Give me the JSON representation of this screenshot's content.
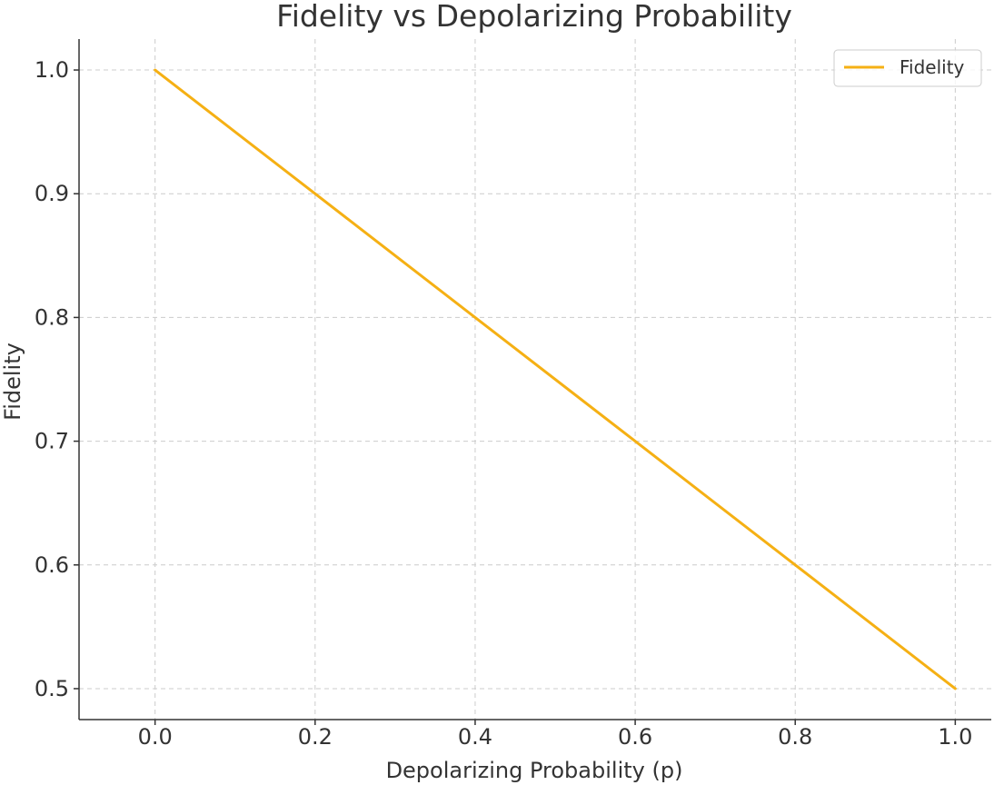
{
  "chart_data": {
    "type": "line",
    "title": "Fidelity vs Depolarizing Probability",
    "xlabel": "Depolarizing Probability (p)",
    "ylabel": "Fidelity",
    "xlim": [
      -0.095,
      1.045
    ],
    "ylim": [
      0.475,
      1.025
    ],
    "x_ticks": [
      0.0,
      0.2,
      0.4,
      0.6,
      0.8,
      1.0
    ],
    "x_tick_labels": [
      "0.0",
      "0.2",
      "0.4",
      "0.6",
      "0.8",
      "1.0"
    ],
    "y_ticks": [
      0.5,
      0.6,
      0.7,
      0.8,
      0.9,
      1.0
    ],
    "y_tick_labels": [
      "0.5",
      "0.6",
      "0.7",
      "0.8",
      "0.9",
      "1.0"
    ],
    "grid": true,
    "legend_position": "top-right",
    "series": [
      {
        "name": "Fidelity",
        "color": "#f5b014",
        "x": [
          0.0,
          0.2,
          0.4,
          0.6,
          0.8,
          1.0
        ],
        "values": [
          1.0,
          0.9,
          0.8,
          0.7,
          0.6,
          0.5
        ]
      }
    ]
  }
}
